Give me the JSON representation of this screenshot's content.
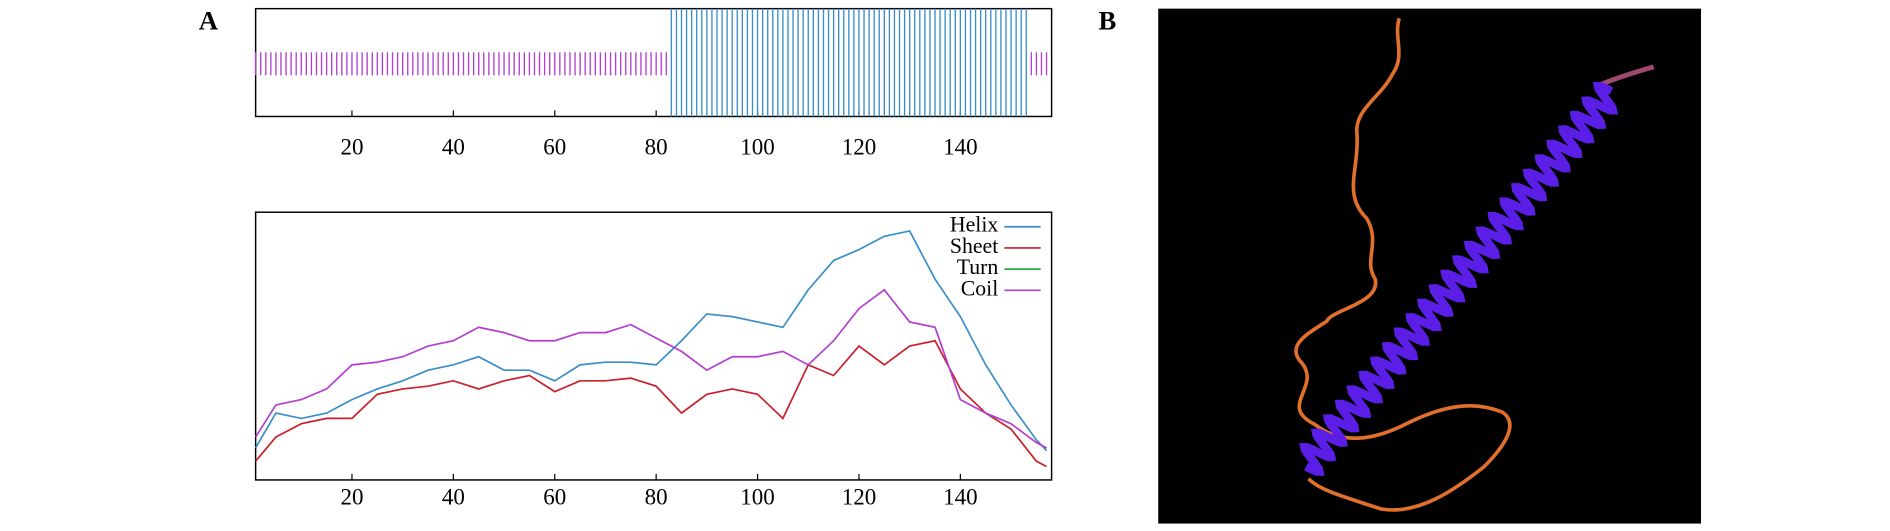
{
  "panels": [
    "A",
    "B"
  ],
  "chart_data": [
    {
      "type": "track",
      "xlim": [
        1,
        158
      ],
      "xticks": [
        20,
        40,
        60,
        80,
        100,
        120,
        140
      ],
      "segments": [
        {
          "name": "Coil",
          "start": 1,
          "end": 82,
          "color": "#b23fd0"
        },
        {
          "name": "Helix",
          "start": 83,
          "end": 153,
          "color": "#3a8ec8"
        },
        {
          "name": "Coil",
          "start": 154,
          "end": 157,
          "color": "#b23fd0"
        }
      ]
    },
    {
      "type": "line",
      "xlim": [
        1,
        158
      ],
      "xticks": [
        20,
        40,
        60,
        80,
        100,
        120,
        140
      ],
      "ylim": [
        0,
        1
      ],
      "legend": "upper right",
      "x": [
        1,
        5,
        10,
        15,
        20,
        25,
        30,
        35,
        40,
        45,
        50,
        55,
        60,
        65,
        70,
        75,
        80,
        85,
        90,
        95,
        100,
        105,
        110,
        115,
        120,
        125,
        130,
        135,
        140,
        145,
        150,
        155,
        157
      ],
      "series": [
        {
          "name": "Helix",
          "color": "#3a8ec8",
          "values": [
            0.12,
            0.25,
            0.23,
            0.25,
            0.3,
            0.34,
            0.37,
            0.41,
            0.43,
            0.46,
            0.41,
            0.41,
            0.37,
            0.43,
            0.44,
            0.44,
            0.43,
            0.52,
            0.62,
            0.61,
            0.59,
            0.57,
            0.71,
            0.82,
            0.86,
            0.91,
            0.93,
            0.75,
            0.61,
            0.43,
            0.28,
            0.15,
            0.11
          ]
        },
        {
          "name": "Sheet",
          "color": "#c8202c",
          "values": [
            0.07,
            0.16,
            0.21,
            0.23,
            0.23,
            0.32,
            0.34,
            0.35,
            0.37,
            0.34,
            0.37,
            0.39,
            0.33,
            0.37,
            0.37,
            0.38,
            0.35,
            0.25,
            0.32,
            0.34,
            0.32,
            0.23,
            0.43,
            0.39,
            0.5,
            0.43,
            0.5,
            0.52,
            0.34,
            0.25,
            0.19,
            0.07,
            0.05
          ]
        },
        {
          "name": "Turn",
          "color": "#2aa845",
          "values": [
            null,
            null,
            null,
            null,
            null,
            null,
            null,
            null,
            null,
            null,
            null,
            null,
            null,
            null,
            null,
            null,
            null,
            null,
            null,
            null,
            null,
            null,
            null,
            null,
            null,
            null,
            null,
            null,
            null,
            null,
            null,
            null,
            null
          ]
        },
        {
          "name": "Coil",
          "color": "#b23fd0",
          "values": [
            0.16,
            0.28,
            0.3,
            0.34,
            0.43,
            0.44,
            0.46,
            0.5,
            0.52,
            0.57,
            0.55,
            0.52,
            0.52,
            0.55,
            0.55,
            0.58,
            0.53,
            0.48,
            0.41,
            0.46,
            0.46,
            0.48,
            0.43,
            0.52,
            0.64,
            0.71,
            0.59,
            0.57,
            0.3,
            0.25,
            0.21,
            0.14,
            0.12
          ]
        }
      ]
    }
  ]
}
